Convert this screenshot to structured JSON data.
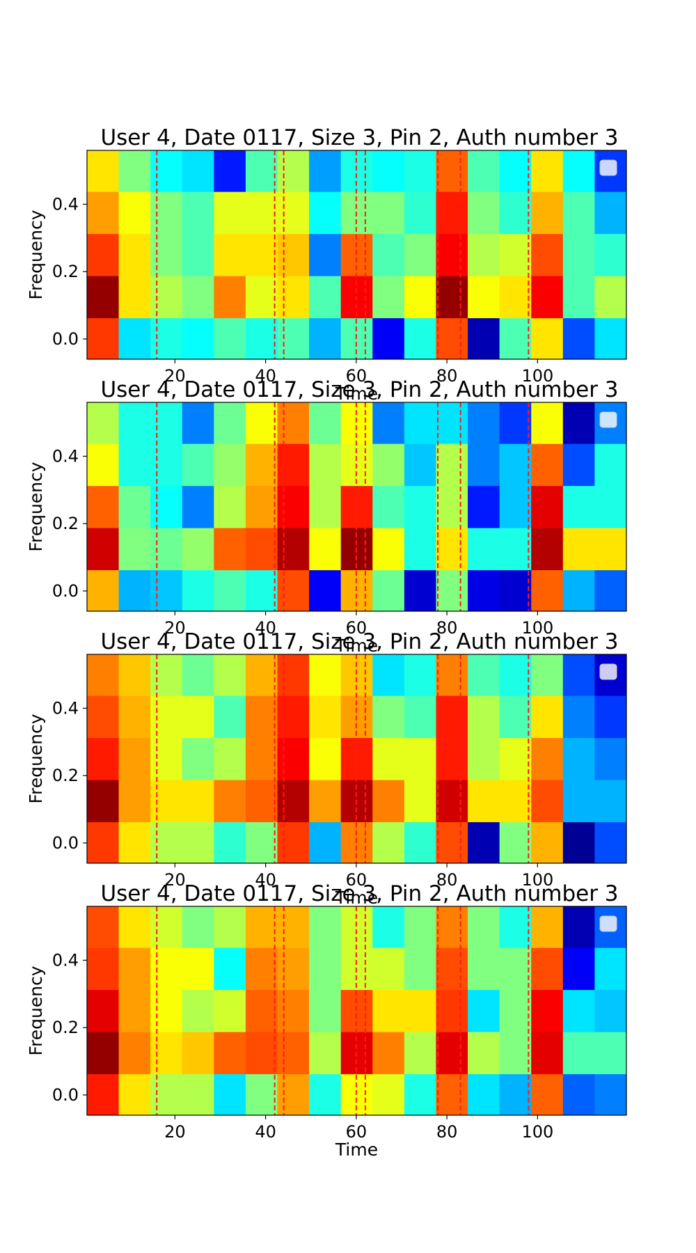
{
  "chart_data": [
    {
      "type": "heatmap",
      "title": "User 4, Date 0117, Size 3, Pin 2, Auth number 3",
      "xlabel": "Time",
      "ylabel": "Frequency",
      "xlim": [
        0.6,
        119.6
      ],
      "ylim": [
        -0.06,
        0.56
      ],
      "xticks": [
        20,
        40,
        60,
        80,
        100
      ],
      "yticks": [
        0.0,
        0.2,
        0.4
      ],
      "ytick_labels": [
        "0.0",
        "0.2",
        "0.4"
      ],
      "colormap": "jet",
      "row_centers": [
        0.0,
        0.125,
        0.25,
        0.375,
        0.5
      ],
      "vlines": [
        16,
        42,
        44,
        60,
        62,
        78,
        83,
        98
      ],
      "legend": "top-right",
      "x_edges": [
        0.6,
        7.6,
        14.6,
        21.6,
        28.6,
        35.6,
        42.6,
        49.6,
        56.6,
        63.6,
        70.6,
        77.6,
        84.6,
        91.6,
        98.6,
        105.6,
        112.6,
        119.6
      ],
      "values": [
        [
          0.82,
          0.35,
          0.4,
          0.38,
          0.45,
          0.4,
          0.45,
          0.3,
          0.45,
          0.12,
          0.4,
          0.8,
          0.05,
          0.45,
          0.65,
          0.2,
          0.35
        ],
        [
          0.98,
          0.65,
          0.55,
          0.5,
          0.75,
          0.6,
          0.65,
          0.45,
          0.88,
          0.5,
          0.62,
          0.98,
          0.62,
          0.65,
          0.88,
          0.45,
          0.55
        ],
        [
          0.82,
          0.65,
          0.5,
          0.45,
          0.65,
          0.65,
          0.68,
          0.25,
          0.78,
          0.45,
          0.5,
          0.88,
          0.55,
          0.58,
          0.8,
          0.45,
          0.42
        ],
        [
          0.72,
          0.62,
          0.5,
          0.45,
          0.6,
          0.6,
          0.6,
          0.38,
          0.5,
          0.5,
          0.42,
          0.85,
          0.5,
          0.42,
          0.7,
          0.45,
          0.3
        ],
        [
          0.65,
          0.5,
          0.38,
          0.35,
          0.15,
          0.45,
          0.55,
          0.28,
          0.4,
          0.38,
          0.4,
          0.78,
          0.45,
          0.38,
          0.65,
          0.38,
          0.18
        ]
      ]
    },
    {
      "type": "heatmap",
      "title": "User 4, Date 0117, Size 3, Pin 2, Auth number 3",
      "xlabel": "Time",
      "ylabel": "Frequency",
      "xlim": [
        0.6,
        119.6
      ],
      "ylim": [
        -0.06,
        0.56
      ],
      "xticks": [
        20,
        40,
        60,
        80,
        100
      ],
      "yticks": [
        0.0,
        0.2,
        0.4
      ],
      "ytick_labels": [
        "0.0",
        "0.2",
        "0.4"
      ],
      "colormap": "jet",
      "row_centers": [
        0.0,
        0.125,
        0.25,
        0.375,
        0.5
      ],
      "vlines": [
        16,
        42,
        44,
        60,
        62,
        78,
        83,
        98
      ],
      "legend": "top-right",
      "x_edges": [
        0.6,
        7.6,
        14.6,
        21.6,
        28.6,
        35.6,
        42.6,
        49.6,
        56.6,
        63.6,
        70.6,
        77.6,
        84.6,
        91.6,
        98.6,
        105.6,
        112.6,
        119.6
      ],
      "values": [
        [
          0.7,
          0.3,
          0.32,
          0.4,
          0.45,
          0.4,
          0.8,
          0.12,
          0.7,
          0.48,
          0.08,
          0.5,
          0.1,
          0.08,
          0.78,
          0.3,
          0.22
        ],
        [
          0.92,
          0.5,
          0.48,
          0.52,
          0.78,
          0.8,
          0.95,
          0.62,
          0.98,
          0.62,
          0.4,
          0.65,
          0.4,
          0.4,
          0.95,
          0.65,
          0.65
        ],
        [
          0.78,
          0.48,
          0.38,
          0.25,
          0.55,
          0.72,
          0.88,
          0.55,
          0.85,
          0.45,
          0.4,
          0.55,
          0.15,
          0.32,
          0.9,
          0.4,
          0.4
        ],
        [
          0.62,
          0.4,
          0.4,
          0.45,
          0.52,
          0.7,
          0.85,
          0.55,
          0.6,
          0.52,
          0.32,
          0.55,
          0.25,
          0.32,
          0.78,
          0.2,
          0.4
        ],
        [
          0.55,
          0.4,
          0.4,
          0.25,
          0.48,
          0.62,
          0.75,
          0.48,
          0.62,
          0.25,
          0.35,
          0.35,
          0.25,
          0.18,
          0.62,
          0.05,
          0.25
        ]
      ]
    },
    {
      "type": "heatmap",
      "title": "User 4, Date 0117, Size 3, Pin 2, Auth number 3",
      "xlabel": "Time",
      "ylabel": "Frequency",
      "xlim": [
        0.6,
        119.6
      ],
      "ylim": [
        -0.06,
        0.56
      ],
      "xticks": [
        20,
        40,
        60,
        80,
        100
      ],
      "yticks": [
        0.0,
        0.2,
        0.4
      ],
      "ytick_labels": [
        "0.0",
        "0.2",
        "0.4"
      ],
      "colormap": "jet",
      "row_centers": [
        0.0,
        0.125,
        0.25,
        0.375,
        0.5
      ],
      "vlines": [
        16,
        42,
        44,
        60,
        62,
        78,
        83,
        98
      ],
      "legend": "top-right",
      "x_edges": [
        0.6,
        7.6,
        14.6,
        21.6,
        28.6,
        35.6,
        42.6,
        49.6,
        56.6,
        63.6,
        70.6,
        77.6,
        84.6,
        91.6,
        98.6,
        105.6,
        112.6,
        119.6
      ],
      "values": [
        [
          0.82,
          0.65,
          0.55,
          0.55,
          0.42,
          0.5,
          0.82,
          0.3,
          0.75,
          0.55,
          0.42,
          0.8,
          0.05,
          0.5,
          0.7,
          0.02,
          0.2
        ],
        [
          0.98,
          0.72,
          0.65,
          0.65,
          0.75,
          0.78,
          0.95,
          0.72,
          0.95,
          0.75,
          0.6,
          0.92,
          0.65,
          0.65,
          0.8,
          0.3,
          0.3
        ],
        [
          0.85,
          0.72,
          0.6,
          0.5,
          0.55,
          0.75,
          0.88,
          0.62,
          0.85,
          0.6,
          0.6,
          0.85,
          0.55,
          0.6,
          0.75,
          0.3,
          0.25
        ],
        [
          0.8,
          0.7,
          0.6,
          0.6,
          0.45,
          0.75,
          0.85,
          0.65,
          0.72,
          0.5,
          0.45,
          0.85,
          0.55,
          0.45,
          0.65,
          0.25,
          0.18
        ],
        [
          0.75,
          0.68,
          0.55,
          0.48,
          0.55,
          0.7,
          0.82,
          0.62,
          0.68,
          0.35,
          0.4,
          0.75,
          0.45,
          0.4,
          0.5,
          0.2,
          0.08
        ]
      ]
    },
    {
      "type": "heatmap",
      "title": "User 4, Date 0117, Size 3, Pin 2, Auth number 3",
      "xlabel": "Time",
      "ylabel": "Frequency",
      "xlim": [
        0.6,
        119.6
      ],
      "ylim": [
        -0.06,
        0.56
      ],
      "xticks": [
        20,
        40,
        60,
        80,
        100
      ],
      "yticks": [
        0.0,
        0.2,
        0.4
      ],
      "ytick_labels": [
        "0.0",
        "0.2",
        "0.4"
      ],
      "colormap": "jet",
      "row_centers": [
        0.0,
        0.125,
        0.25,
        0.375,
        0.5
      ],
      "vlines": [
        16,
        42,
        44,
        60,
        62,
        78,
        83,
        98
      ],
      "legend": "top-right",
      "x_edges": [
        0.6,
        7.6,
        14.6,
        21.6,
        28.6,
        35.6,
        42.6,
        49.6,
        56.6,
        63.6,
        70.6,
        77.6,
        84.6,
        91.6,
        98.6,
        105.6,
        112.6,
        119.6
      ],
      "values": [
        [
          0.85,
          0.65,
          0.55,
          0.55,
          0.35,
          0.5,
          0.72,
          0.4,
          0.62,
          0.6,
          0.4,
          0.78,
          0.35,
          0.3,
          0.78,
          0.22,
          0.25
        ],
        [
          0.98,
          0.75,
          0.65,
          0.68,
          0.78,
          0.8,
          0.78,
          0.55,
          0.9,
          0.75,
          0.55,
          0.9,
          0.55,
          0.5,
          0.9,
          0.45,
          0.45
        ],
        [
          0.9,
          0.72,
          0.62,
          0.55,
          0.58,
          0.78,
          0.75,
          0.5,
          0.8,
          0.65,
          0.65,
          0.82,
          0.35,
          0.5,
          0.88,
          0.35,
          0.32
        ],
        [
          0.82,
          0.72,
          0.62,
          0.62,
          0.38,
          0.75,
          0.72,
          0.5,
          0.58,
          0.58,
          0.5,
          0.8,
          0.5,
          0.5,
          0.8,
          0.12,
          0.35
        ],
        [
          0.8,
          0.65,
          0.58,
          0.5,
          0.55,
          0.7,
          0.7,
          0.5,
          0.58,
          0.4,
          0.5,
          0.75,
          0.5,
          0.4,
          0.7,
          0.05,
          0.22
        ]
      ]
    }
  ]
}
